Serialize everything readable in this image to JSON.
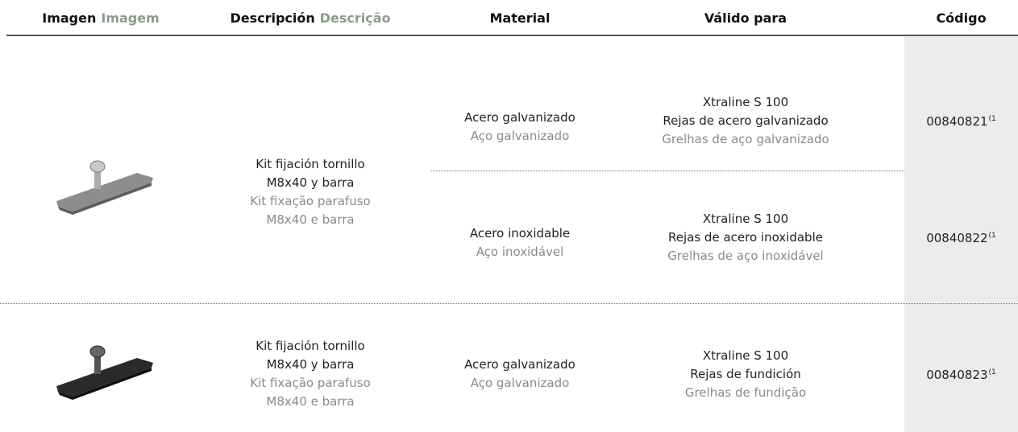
{
  "header": {
    "columns": [
      {
        "es": "Imagen",
        "pt": "Imagem"
      },
      {
        "es": "Descripción",
        "pt": "Descrição"
      },
      {
        "text": "Material"
      },
      {
        "text": "Válido para"
      },
      {
        "text": "Código"
      }
    ]
  },
  "products": [
    {
      "description": {
        "es": [
          "Kit fijación tornillo",
          "M8x40 y barra"
        ],
        "pt": [
          "Kit fixação parafuso",
          "M8x40 e barra"
        ]
      },
      "variants": [
        {
          "material": {
            "es": "Acero galvanizado",
            "pt": "Aço galvanizado"
          },
          "valid_for": {
            "product": "Xtraline S 100",
            "es": "Rejas de acero galvanizado",
            "pt": "Grelhas de aço galvanizado"
          },
          "code": "00840821",
          "note": "(1"
        },
        {
          "material": {
            "es": "Acero inoxidable",
            "pt": "Aço inoxidável"
          },
          "valid_for": {
            "product": "Xtraline S 100",
            "es": "Rejas de acero inoxidable",
            "pt": "Grelhas de aço inoxidável"
          },
          "code": "00840822",
          "note": "(1"
        }
      ]
    },
    {
      "description": {
        "es": [
          "Kit fijación tornillo",
          "M8x40 y barra"
        ],
        "pt": [
          "Kit fixação parafuso",
          "M8x40 e barra"
        ]
      },
      "variants": [
        {
          "material": {
            "es": "Acero galvanizado",
            "pt": "Aço galvanizado"
          },
          "valid_for": {
            "product": "Xtraline S 100",
            "es": "Rejas de fundición",
            "pt": "Grelhas de fundição"
          },
          "code": "00840823",
          "note": "(1"
        }
      ]
    }
  ]
}
